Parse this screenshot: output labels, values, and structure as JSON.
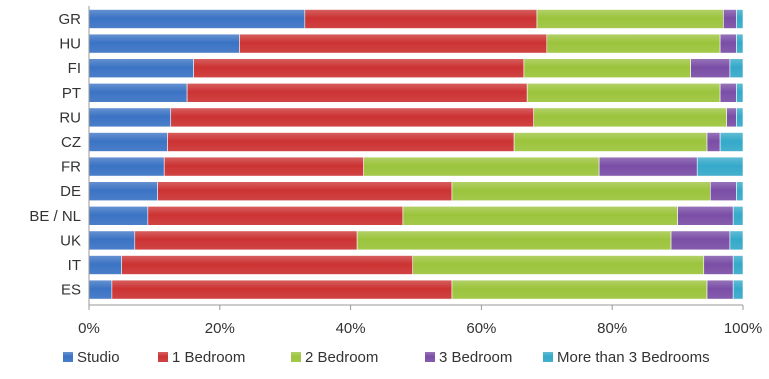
{
  "chart_data": {
    "type": "bar",
    "orientation": "horizontal",
    "stacked": "percent",
    "categories": [
      "GR",
      "HU",
      "FI",
      "PT",
      "RU",
      "CZ",
      "FR",
      "DE",
      "BE / NL",
      "UK",
      "IT",
      "ES"
    ],
    "series": [
      {
        "name": "Studio",
        "color": "#3b73c4",
        "values": [
          33,
          23,
          16,
          15,
          12.5,
          12,
          11.5,
          10.5,
          9,
          7,
          5,
          3.5
        ]
      },
      {
        "name": "1 Bedroom",
        "color": "#cc3333",
        "values": [
          35.5,
          47,
          50.5,
          52,
          55.5,
          53,
          30.5,
          45,
          39,
          34,
          44.5,
          52
        ]
      },
      {
        "name": "2 Bedroom",
        "color": "#9cc43c",
        "values": [
          28.5,
          26.5,
          25.5,
          29.5,
          29.5,
          29.5,
          36,
          39.5,
          42,
          48,
          44.5,
          39
        ]
      },
      {
        "name": "3 Bedroom",
        "color": "#7a4ea6",
        "values": [
          2,
          2.5,
          6,
          2.5,
          1.5,
          2,
          15,
          4,
          8.5,
          9,
          4.5,
          4
        ]
      },
      {
        "name": "More than 3 Bedrooms",
        "color": "#35a9c9",
        "values": [
          1,
          1,
          2,
          1,
          1,
          3.5,
          7,
          1,
          1.5,
          2,
          1.5,
          1.5
        ]
      }
    ],
    "xlim": [
      0,
      100
    ],
    "x_ticks": [
      "0%",
      "20%",
      "40%",
      "60%",
      "80%",
      "100%"
    ],
    "grid": false,
    "legend_position": "bottom"
  }
}
